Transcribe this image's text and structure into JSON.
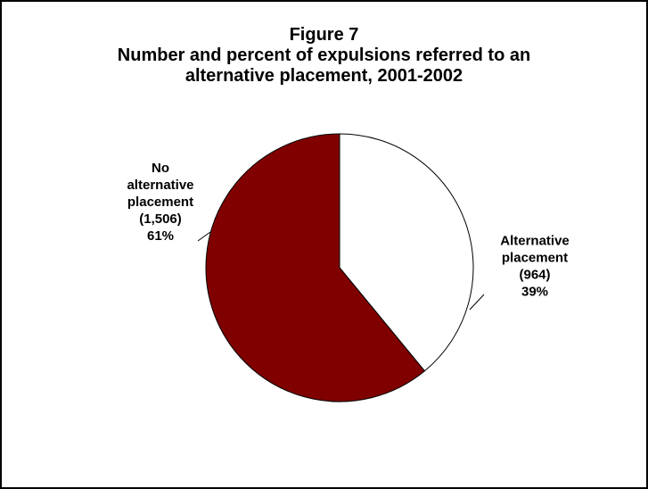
{
  "chart_data": {
    "type": "pie",
    "title": [
      "Figure 7",
      "Number and percent of expulsions referred to an",
      "alternative placement, 2001-2002"
    ],
    "slices": [
      {
        "category": "Alternative placement",
        "value": 964,
        "percent": 39,
        "color": "#ffffff",
        "label_lines": [
          "Alternative",
          "placement",
          "(964)",
          "39%"
        ]
      },
      {
        "category": "No alternative placement",
        "value": 1506,
        "percent": 61,
        "color": "#800000",
        "label_lines": [
          "No",
          "alternative",
          "placement",
          "(1,506)",
          "61%"
        ]
      }
    ],
    "start_angle_deg": 0,
    "direction": "clockwise"
  }
}
